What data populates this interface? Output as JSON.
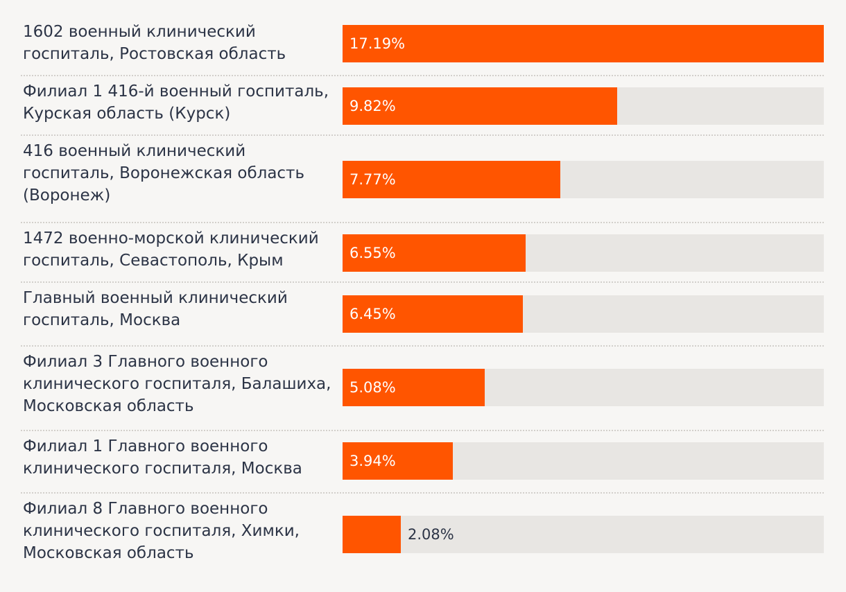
{
  "chart_data": {
    "type": "bar",
    "orientation": "horizontal",
    "categories": [
      "1602 военный клинический\nгоспиталь, Ростовская область",
      "Филиал 1 416-й военный госпиталь,\nКурская область (Курск)",
      "416 военный клинический\nгоспиталь, Воронежская область\n(Воронеж)",
      "1472 военно-морской клинический\nгоспиталь, Севастополь, Крым",
      "Главный военный клинический\nгоспиталь, Москва",
      "Филиал 3 Главного военного\nклинического госпиталя, Балашиха,\nМосковская область",
      "Филиал 1 Главного военного\nклинического госпиталя, Москва",
      "Филиал 8 Главного военного\nклинического госпиталя, Химки,\nМосковская область"
    ],
    "values": [
      17.19,
      9.82,
      7.77,
      6.55,
      6.45,
      5.08,
      3.94,
      2.08
    ],
    "value_labels": [
      "17.19%",
      "9.82%",
      "7.77%",
      "6.55%",
      "6.45%",
      "5.08%",
      "3.94%",
      "2.08%"
    ],
    "xlim": [
      0,
      17.19
    ],
    "grid": false,
    "colors": {
      "bar": "#ff5500",
      "track": "#e8e6e3",
      "background": "#f7f6f4",
      "text": "#2c3446",
      "label_inside": "#ffffff"
    }
  }
}
